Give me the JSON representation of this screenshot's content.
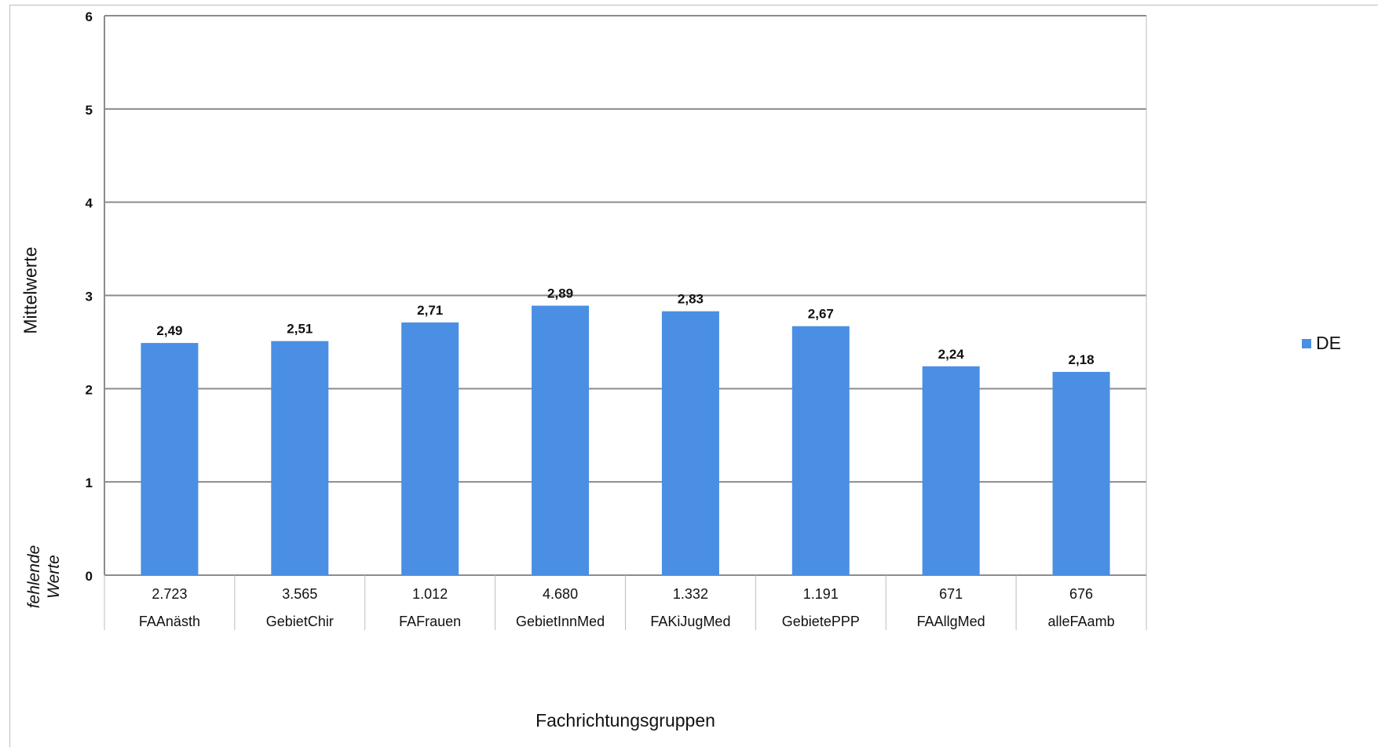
{
  "chart_data": {
    "type": "bar",
    "categories": [
      "FAAnästh",
      "GebietChir",
      "FAFrauen",
      "GebietInnMed",
      "FAKiJugMed",
      "GebietePPP",
      "FAAllgMed",
      "alleFAamb"
    ],
    "missing_values": [
      "2.723",
      "3.565",
      "1.012",
      "4.680",
      "1.332",
      "1.191",
      "671",
      "676"
    ],
    "series": [
      {
        "name": "DE",
        "values": [
          2.49,
          2.51,
          2.71,
          2.89,
          2.83,
          2.67,
          2.24,
          2.18
        ],
        "color": "#4a8fe3"
      }
    ],
    "data_labels": [
      "2,49",
      "2,51",
      "2,71",
      "2,89",
      "2,83",
      "2,67",
      "2,24",
      "2,18"
    ],
    "y_ticks": [
      "0",
      "1",
      "2",
      "3",
      "4",
      "5",
      "6"
    ],
    "ylim": [
      0,
      6
    ],
    "ylabel": "Mittelwerte",
    "xlabel": "Fachrichtungsgruppen",
    "missing_label_line1": "fehlende",
    "missing_label_line2": "Werte",
    "grid": true,
    "legend_position": "right"
  }
}
